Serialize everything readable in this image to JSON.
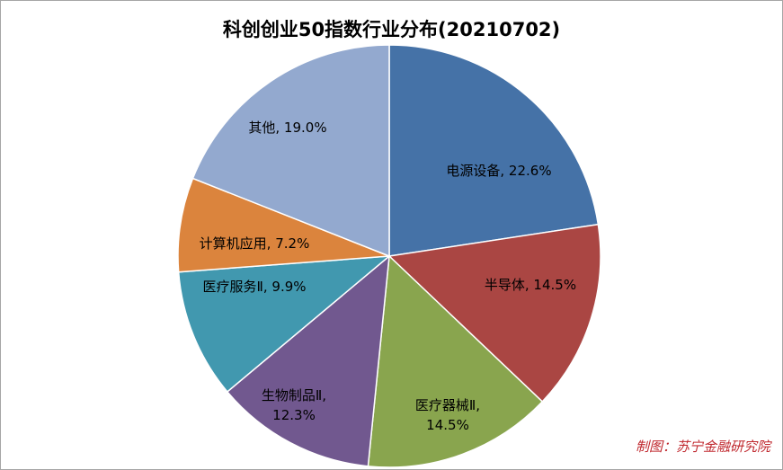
{
  "chart_data": {
    "type": "pie",
    "title": "科创创业50指数行业分布(20210702)",
    "slices": [
      {
        "label": "电源设备",
        "value": 22.6,
        "text": "电源设备, 22.6%",
        "color": "#4572a7"
      },
      {
        "label": "半导体",
        "value": 14.5,
        "text": "半导体, 14.5%",
        "color": "#aa4643"
      },
      {
        "label": "医疗器械Ⅱ",
        "value": 14.5,
        "text": "医疗器械Ⅱ,|14.5%",
        "color": "#89a54e"
      },
      {
        "label": "生物制品Ⅱ",
        "value": 12.3,
        "text": "生物制品Ⅱ,|12.3%",
        "color": "#71588f"
      },
      {
        "label": "医疗服务Ⅱ",
        "value": 9.9,
        "text": "医疗服务Ⅱ, 9.9%",
        "color": "#4198af"
      },
      {
        "label": "计算机应用",
        "value": 7.2,
        "text": "计算机应用, 7.2%",
        "color": "#db843d"
      },
      {
        "label": "其他",
        "value": 19.0,
        "text": "其他, 19.0%",
        "color": "#93a9cf"
      }
    ],
    "start": "12 o'clock",
    "direction": "clockwise"
  },
  "credit": "制图：苏宁金融研究院"
}
